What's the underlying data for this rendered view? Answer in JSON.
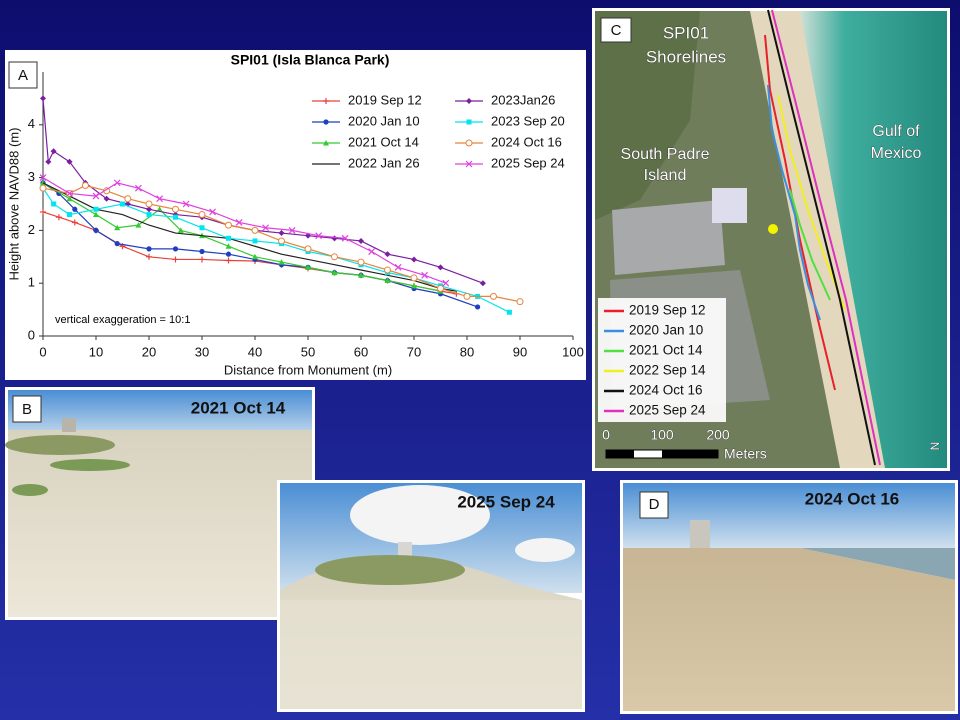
{
  "chart_data": {
    "type": "line",
    "title": "SPI01 (Isla Blanca Park)",
    "x_label": "Distance from Monument (m)",
    "y_label": "Height above NAVD88 (m)",
    "annotation": "vertical exaggeration = 10:1",
    "xlim": [
      0,
      100
    ],
    "xticks": [
      0,
      10,
      20,
      30,
      40,
      50,
      60,
      70,
      80,
      90,
      100
    ],
    "ylim": [
      0,
      5
    ],
    "yticks": [
      0,
      1,
      2,
      3,
      4
    ],
    "grid": false,
    "legend": "upper right",
    "series": [
      {
        "name": "2019 Sep 12",
        "color": "#e8413c",
        "marker": "plus",
        "x": [
          0,
          3,
          6,
          10,
          15,
          20,
          25,
          30,
          35,
          40,
          45,
          50,
          55,
          60,
          65,
          70,
          75,
          78
        ],
        "values": [
          2.35,
          2.25,
          2.15,
          2.0,
          1.7,
          1.5,
          1.45,
          1.45,
          1.43,
          1.42,
          1.35,
          1.28,
          1.2,
          1.15,
          1.05,
          0.95,
          0.85,
          0.8
        ]
      },
      {
        "name": "2020 Jan 10",
        "color": "#1f3fbf",
        "marker": "dot",
        "x": [
          0,
          3,
          6,
          10,
          14,
          20,
          25,
          30,
          35,
          40,
          45,
          50,
          55,
          60,
          65,
          70,
          75,
          82
        ],
        "values": [
          2.9,
          2.7,
          2.4,
          2.0,
          1.75,
          1.65,
          1.65,
          1.6,
          1.55,
          1.45,
          1.35,
          1.3,
          1.2,
          1.15,
          1.05,
          0.9,
          0.8,
          0.55
        ]
      },
      {
        "name": "2021 Oct 14",
        "color": "#33cc33",
        "marker": "triangle",
        "x": [
          0,
          5,
          10,
          14,
          18,
          22,
          26,
          30,
          35,
          40,
          45,
          50,
          55,
          60,
          65,
          70,
          75
        ],
        "values": [
          2.9,
          2.6,
          2.3,
          2.05,
          2.1,
          2.4,
          2.0,
          1.9,
          1.7,
          1.5,
          1.4,
          1.3,
          1.2,
          1.15,
          1.05,
          0.95,
          0.85
        ]
      },
      {
        "name": "2022 Jan 26",
        "color": "#222222",
        "marker": "none",
        "x": [
          0,
          5,
          10,
          15,
          20,
          25,
          30,
          35,
          40,
          45,
          50,
          55,
          60,
          65,
          70,
          75,
          78
        ],
        "values": [
          2.9,
          2.65,
          2.4,
          2.3,
          2.1,
          1.95,
          1.9,
          1.85,
          1.7,
          1.55,
          1.45,
          1.35,
          1.25,
          1.15,
          1.05,
          0.9,
          0.85
        ]
      },
      {
        "name": "2023Jan26",
        "color": "#7b1fa2",
        "marker": "diamond",
        "x": [
          0,
          1,
          2,
          5,
          8,
          12,
          16,
          20,
          25,
          30,
          35,
          40,
          45,
          50,
          55,
          60,
          65,
          70,
          75,
          83
        ],
        "values": [
          4.5,
          3.3,
          3.5,
          3.3,
          2.9,
          2.6,
          2.5,
          2.4,
          2.3,
          2.25,
          2.1,
          2.0,
          1.95,
          1.9,
          1.85,
          1.8,
          1.55,
          1.45,
          1.3,
          1.0
        ]
      },
      {
        "name": "2023 Sep 20",
        "color": "#00e5ee",
        "marker": "square",
        "x": [
          0,
          2,
          5,
          10,
          15,
          20,
          25,
          30,
          35,
          40,
          45,
          50,
          55,
          60,
          65,
          70,
          75,
          82,
          88
        ],
        "values": [
          2.8,
          2.5,
          2.3,
          2.4,
          2.5,
          2.3,
          2.25,
          2.05,
          1.85,
          1.8,
          1.75,
          1.6,
          1.5,
          1.35,
          1.2,
          1.1,
          0.95,
          0.75,
          0.45
        ]
      },
      {
        "name": "2024 Oct 16",
        "color": "#e8843a",
        "marker": "circle",
        "x": [
          0,
          5,
          8,
          12,
          16,
          20,
          25,
          30,
          35,
          40,
          45,
          50,
          55,
          60,
          65,
          70,
          75,
          80,
          85,
          90
        ],
        "values": [
          2.8,
          2.7,
          2.85,
          2.75,
          2.6,
          2.5,
          2.4,
          2.3,
          2.1,
          2.0,
          1.8,
          1.65,
          1.5,
          1.4,
          1.25,
          1.1,
          0.9,
          0.75,
          0.75,
          0.65
        ]
      },
      {
        "name": "2025 Sep 24",
        "color": "#e040e0",
        "marker": "cross",
        "x": [
          0,
          5,
          10,
          14,
          18,
          22,
          27,
          32,
          37,
          42,
          47,
          52,
          57,
          62,
          67,
          72,
          76
        ],
        "values": [
          3.0,
          2.7,
          2.65,
          2.9,
          2.8,
          2.6,
          2.5,
          2.35,
          2.15,
          2.05,
          2.0,
          1.9,
          1.85,
          1.6,
          1.3,
          1.15,
          1.0
        ]
      }
    ]
  },
  "panel_a": {
    "label": "A"
  },
  "map": {
    "label": "C",
    "title_lines": [
      "SPI01",
      "Shorelines"
    ],
    "island_lines": [
      "South Padre",
      "Island"
    ],
    "gulf_lines": [
      "Gulf of",
      "Mexico"
    ],
    "legend": [
      {
        "name": "2019 Sep 12",
        "color": "#e8202a"
      },
      {
        "name": "2020 Jan 10",
        "color": "#3a8fe0"
      },
      {
        "name": "2021 Oct 14",
        "color": "#50e040"
      },
      {
        "name": "2022 Sep 14",
        "color": "#f0f020"
      },
      {
        "name": "2024 Oct 16",
        "color": "#111111"
      },
      {
        "name": "2025 Sep 24",
        "color": "#e030c0"
      }
    ],
    "scale_labels": [
      "0",
      "100",
      "200"
    ],
    "scale_unit": "Meters",
    "north": "N"
  },
  "photo_b": {
    "label": "B",
    "date": "2021 Oct 14"
  },
  "photo_mid": {
    "date": "2025 Sep 24"
  },
  "photo_d": {
    "label": "D",
    "date": "2024 Oct 16"
  }
}
